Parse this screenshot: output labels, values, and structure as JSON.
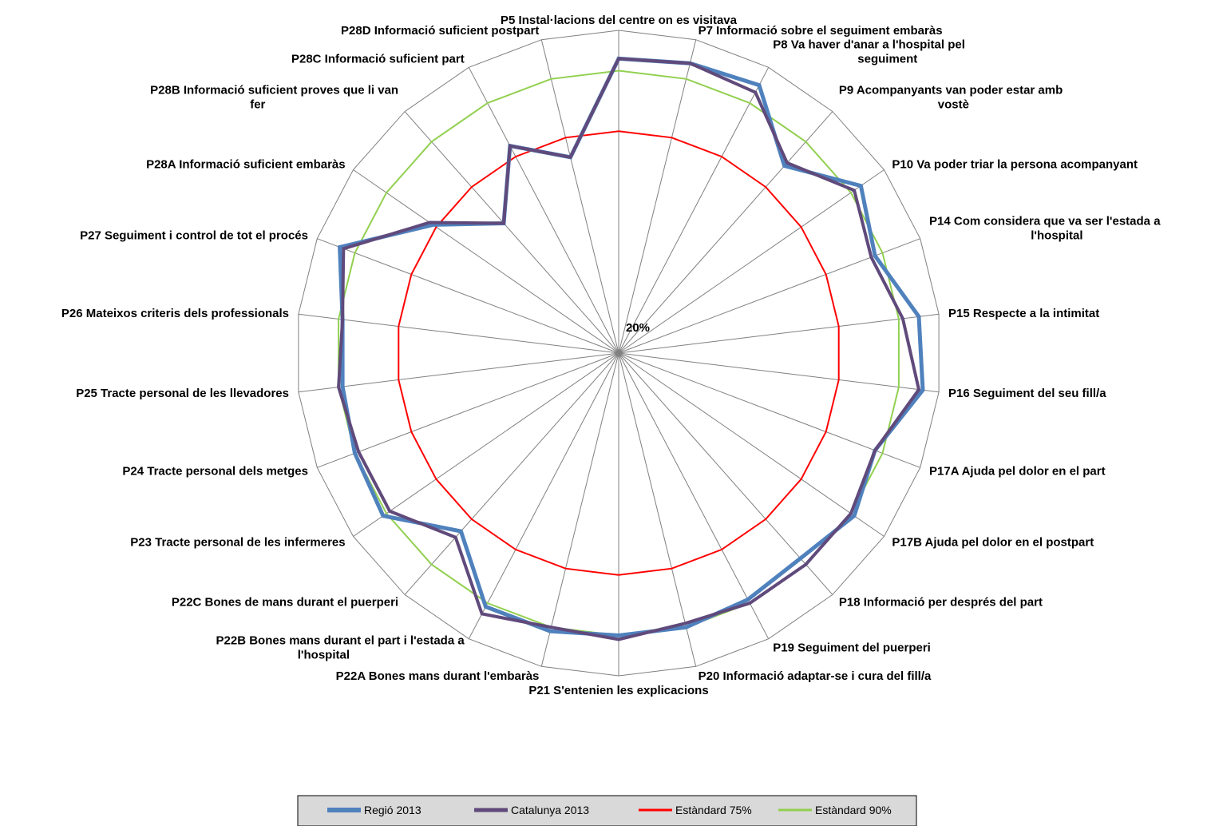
{
  "chart_data": {
    "type": "radar",
    "title": "",
    "tick_label": "20%",
    "categories": [
      "P5 Instal·lacions del centre on es visitava",
      "P7 Informació sobre el seguiment embaràs",
      "P8 Va haver d'anar a l'hospital pel seguiment",
      "P9 Acompanyants van poder estar amb vostè",
      "P10 Va poder triar la persona acompanyant",
      "P14 Com considera que va ser l'estada a l'hospital",
      "P15 Respecte a la intimitat",
      "P16 Seguiment del seu fill/a",
      "P17A Ajuda pel dolor en el part",
      "P17B Ajuda pel dolor en el postpart",
      "P18 Informació per després del part",
      "P19 Seguiment del puerperi",
      "P20 Informació adaptar-se i cura del fill/a",
      "P21 S'entenien les explicacions",
      "P22A Bones mans durant l'embaràs",
      "P22B Bones mans durant el part i l'estada a l'hospital",
      "P22C Bones de mans durant el puerperi",
      "P23 Tracte personal de les infermeres",
      "P24 Tracte personal dels metges",
      "P25 Tracte personal de les llevadores",
      "P26 Mateixos criteris dels professionals",
      "P27 Seguiment i control de tot el procés",
      "P28A Informació suficient embaràs",
      "P28B Informació suficient proves que li van fer",
      "P28C Informació suficient part",
      "P28D Informació suficient postpart"
    ],
    "rlim": [
      20,
      100
    ],
    "grid": true,
    "legend_position": "bottom",
    "series": [
      {
        "name": "Regió 2013",
        "color": "#4F81BD",
        "values": [
          93,
          94,
          95,
          82,
          93,
          88,
          95,
          96,
          88,
          91,
          88,
          89,
          90,
          90,
          91,
          91,
          79,
          91,
          90,
          89,
          89,
          94,
          76,
          63,
          78,
          70
        ]
      },
      {
        "name": "Catalunya 2013",
        "color": "#604A7B",
        "values": [
          93,
          94,
          93,
          83,
          91,
          87,
          91,
          95,
          88,
          90,
          90,
          90,
          89,
          91,
          90,
          93,
          81,
          89,
          89,
          90,
          89,
          93,
          77,
          63,
          78,
          70
        ]
      },
      {
        "name": "Estàndard 75%",
        "color": "#FF0000",
        "values": [
          75,
          75,
          75,
          75,
          75,
          75,
          75,
          75,
          75,
          75,
          75,
          75,
          75,
          75,
          75,
          75,
          75,
          75,
          75,
          75,
          75,
          75,
          75,
          75,
          75,
          75
        ]
      },
      {
        "name": "Estàndard 90%",
        "color": "#92D050",
        "values": [
          90,
          90,
          90,
          90,
          90,
          90,
          90,
          90,
          90,
          90,
          90,
          90,
          90,
          90,
          90,
          90,
          90,
          90,
          90,
          90,
          90,
          90,
          90,
          90,
          90,
          90
        ]
      }
    ]
  }
}
